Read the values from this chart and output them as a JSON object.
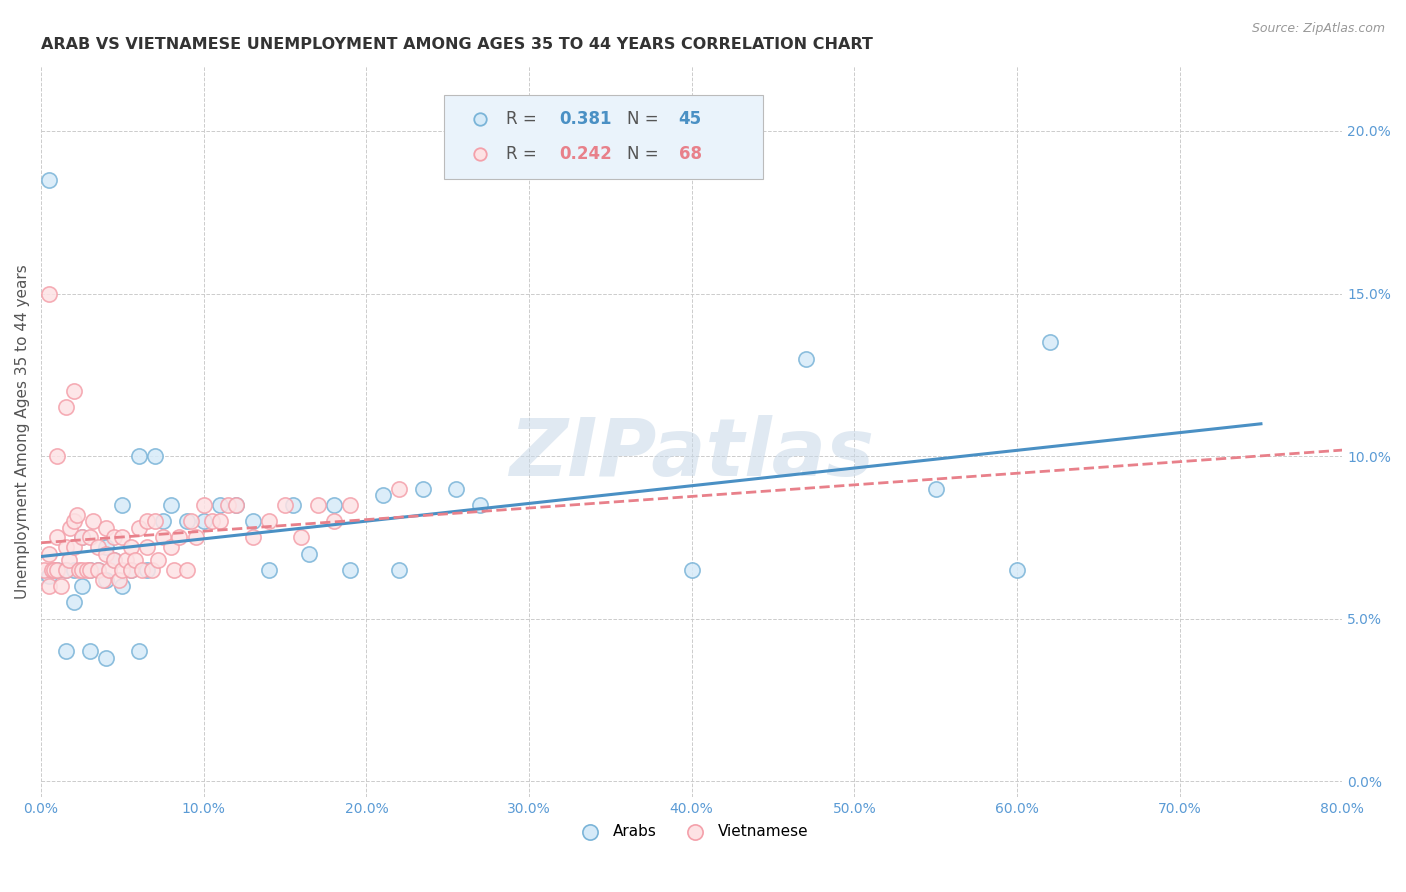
{
  "title": "ARAB VS VIETNAMESE UNEMPLOYMENT AMONG AGES 35 TO 44 YEARS CORRELATION CHART",
  "source": "Source: ZipAtlas.com",
  "ylabel": "Unemployment Among Ages 35 to 44 years",
  "xlim": [
    0.0,
    0.8
  ],
  "ylim": [
    -0.005,
    0.22
  ],
  "xticks": [
    0.0,
    0.1,
    0.2,
    0.3,
    0.4,
    0.5,
    0.6,
    0.7,
    0.8
  ],
  "yticks": [
    0.0,
    0.05,
    0.1,
    0.15,
    0.2
  ],
  "xticklabels": [
    "0.0%",
    "10.0%",
    "20.0%",
    "30.0%",
    "40.0%",
    "50.0%",
    "60.0%",
    "70.0%",
    "80.0%"
  ],
  "yticklabels": [
    "0.0%",
    "5.0%",
    "10.0%",
    "15.0%",
    "20.0%"
  ],
  "arab_color": "#7ab4d8",
  "viet_color": "#f4a0aa",
  "arab_R": 0.381,
  "arab_N": 45,
  "viet_R": 0.242,
  "viet_N": 68,
  "background_color": "#ffffff",
  "grid_color": "#cccccc",
  "watermark": "ZIPatlas",
  "legend_arab_label": "Arabs",
  "legend_viet_label": "Vietnamese",
  "arab_x": [
    0.005,
    0.01,
    0.015,
    0.02,
    0.025,
    0.025,
    0.03,
    0.035,
    0.04,
    0.04,
    0.045,
    0.05,
    0.05,
    0.055,
    0.06,
    0.065,
    0.07,
    0.075,
    0.08,
    0.09,
    0.1,
    0.11,
    0.12,
    0.13,
    0.14,
    0.155,
    0.165,
    0.18,
    0.19,
    0.21,
    0.22,
    0.235,
    0.255,
    0.27,
    0.4,
    0.47,
    0.55,
    0.6,
    0.62,
    0.005,
    0.015,
    0.02,
    0.03,
    0.04,
    0.06
  ],
  "arab_y": [
    0.063,
    0.065,
    0.065,
    0.065,
    0.06,
    0.075,
    0.065,
    0.065,
    0.062,
    0.072,
    0.068,
    0.06,
    0.085,
    0.065,
    0.1,
    0.065,
    0.1,
    0.08,
    0.085,
    0.08,
    0.08,
    0.085,
    0.085,
    0.08,
    0.065,
    0.085,
    0.07,
    0.085,
    0.065,
    0.088,
    0.065,
    0.09,
    0.09,
    0.085,
    0.065,
    0.13,
    0.09,
    0.065,
    0.135,
    0.185,
    0.04,
    0.055,
    0.04,
    0.038,
    0.04
  ],
  "viet_x": [
    0.002,
    0.005,
    0.005,
    0.007,
    0.008,
    0.01,
    0.01,
    0.012,
    0.015,
    0.015,
    0.017,
    0.018,
    0.02,
    0.02,
    0.022,
    0.023,
    0.025,
    0.025,
    0.028,
    0.03,
    0.03,
    0.032,
    0.035,
    0.035,
    0.038,
    0.04,
    0.04,
    0.042,
    0.045,
    0.045,
    0.048,
    0.05,
    0.05,
    0.052,
    0.055,
    0.055,
    0.058,
    0.06,
    0.062,
    0.065,
    0.065,
    0.068,
    0.07,
    0.072,
    0.075,
    0.08,
    0.082,
    0.085,
    0.09,
    0.092,
    0.095,
    0.1,
    0.105,
    0.11,
    0.115,
    0.12,
    0.13,
    0.14,
    0.15,
    0.16,
    0.17,
    0.18,
    0.19,
    0.22,
    0.005,
    0.01,
    0.015,
    0.02
  ],
  "viet_y": [
    0.065,
    0.06,
    0.07,
    0.065,
    0.065,
    0.065,
    0.075,
    0.06,
    0.065,
    0.072,
    0.068,
    0.078,
    0.072,
    0.08,
    0.082,
    0.065,
    0.065,
    0.075,
    0.065,
    0.065,
    0.075,
    0.08,
    0.072,
    0.065,
    0.062,
    0.07,
    0.078,
    0.065,
    0.068,
    0.075,
    0.062,
    0.075,
    0.065,
    0.068,
    0.065,
    0.072,
    0.068,
    0.078,
    0.065,
    0.072,
    0.08,
    0.065,
    0.08,
    0.068,
    0.075,
    0.072,
    0.065,
    0.075,
    0.065,
    0.08,
    0.075,
    0.085,
    0.08,
    0.08,
    0.085,
    0.085,
    0.075,
    0.08,
    0.085,
    0.075,
    0.085,
    0.08,
    0.085,
    0.09,
    0.15,
    0.1,
    0.115,
    0.12
  ]
}
